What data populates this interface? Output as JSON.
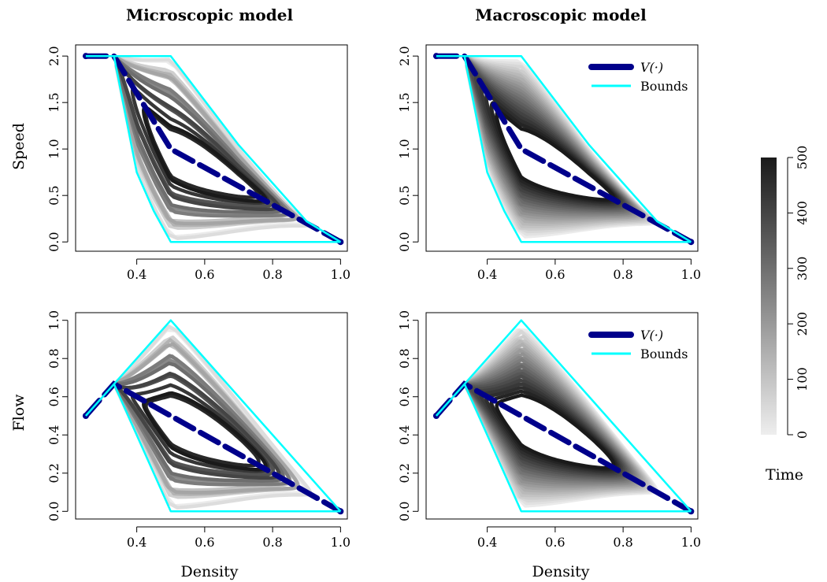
{
  "columns": [
    "Microscopic model",
    "Macroscopic model"
  ],
  "row_labels": [
    "Speed",
    "Flow"
  ],
  "xlabel": "Density",
  "legend": {
    "vfun": "V(·)",
    "bounds": "Bounds"
  },
  "colorbar": {
    "label": "Time",
    "ticks": [
      "0",
      "100",
      "200",
      "300",
      "400",
      "500"
    ],
    "range": [
      0,
      500
    ]
  },
  "colors": {
    "vfun": "#00008b",
    "bounds": "#00ffff",
    "time_low": "#eeeeee",
    "time_high": "#1a1a1a"
  },
  "chart_data": [
    {
      "type": "line",
      "title": "Microscopic model",
      "xlabel": "",
      "ylabel": "Speed",
      "xlim": [
        0.22,
        1.02
      ],
      "ylim": [
        -0.1,
        2.12
      ],
      "xticks": [
        "0.4",
        "0.6",
        "0.8",
        "1.0"
      ],
      "yticks": [
        "0.0",
        "0.5",
        "1.0",
        "1.5",
        "2.0"
      ],
      "series": [
        {
          "x": [
            0.25,
            0.333,
            0.5,
            1.0
          ],
          "y": [
            2.0,
            2.0,
            1.0,
            0.0
          ]
        },
        {
          "x": [
            0.25,
            0.5,
            0.7,
            0.9,
            1.0
          ],
          "y": [
            2.0,
            2.0,
            1.043,
            0.222,
            0.0
          ]
        },
        {
          "x": [
            0.333,
            0.4,
            0.45,
            0.5,
            1.0
          ],
          "y": [
            2.0,
            0.75,
            0.333,
            0.0,
            0.0
          ]
        }
      ]
    },
    {
      "type": "line",
      "title": "Macroscopic model",
      "xlabel": "",
      "ylabel": "",
      "xlim": [
        0.22,
        1.02
      ],
      "ylim": [
        -0.1,
        2.12
      ],
      "xticks": [
        "0.4",
        "0.6",
        "0.8",
        "1.0"
      ],
      "yticks": [
        "0.0",
        "0.5",
        "1.0",
        "1.5",
        "2.0"
      ],
      "series": [
        {
          "x": [
            0.25,
            0.333,
            0.5,
            1.0
          ],
          "y": [
            2.0,
            2.0,
            1.0,
            0.0
          ]
        },
        {
          "x": [
            0.25,
            0.5,
            0.7,
            0.9,
            1.0
          ],
          "y": [
            2.0,
            2.0,
            1.043,
            0.222,
            0.0
          ]
        },
        {
          "x": [
            0.333,
            0.4,
            0.45,
            0.5,
            1.0
          ],
          "y": [
            2.0,
            0.75,
            0.333,
            0.0,
            0.0
          ]
        }
      ]
    },
    {
      "type": "line",
      "title": "",
      "xlabel": "Density",
      "ylabel": "Flow",
      "xlim": [
        0.22,
        1.02
      ],
      "ylim": [
        -0.04,
        1.04
      ],
      "xticks": [
        "0.4",
        "0.6",
        "0.8",
        "1.0"
      ],
      "yticks": [
        "0.0",
        "0.2",
        "0.4",
        "0.6",
        "0.8",
        "1.0"
      ],
      "series": [
        {
          "x": [
            0.25,
            0.333,
            0.5,
            1.0
          ],
          "y": [
            0.5,
            0.667,
            0.5,
            0.0
          ]
        },
        {
          "x": [
            0.25,
            0.5,
            1.0
          ],
          "y": [
            0.5,
            1.0,
            0.0
          ]
        },
        {
          "x": [
            0.333,
            0.5,
            1.0
          ],
          "y": [
            0.667,
            0.0,
            0.0
          ]
        }
      ]
    },
    {
      "type": "line",
      "title": "",
      "xlabel": "Density",
      "ylabel": "",
      "xlim": [
        0.22,
        1.02
      ],
      "ylim": [
        -0.04,
        1.04
      ],
      "xticks": [
        "0.4",
        "0.6",
        "0.8",
        "1.0"
      ],
      "yticks": [
        "0.0",
        "0.2",
        "0.4",
        "0.6",
        "0.8",
        "1.0"
      ],
      "series": [
        {
          "x": [
            0.25,
            0.333,
            0.5,
            1.0
          ],
          "y": [
            0.5,
            0.667,
            0.5,
            0.0
          ]
        },
        {
          "x": [
            0.25,
            0.5,
            1.0
          ],
          "y": [
            0.5,
            1.0,
            0.0
          ]
        },
        {
          "x": [
            0.333,
            0.5,
            1.0
          ],
          "y": [
            0.667,
            0.0,
            0.0
          ]
        }
      ]
    }
  ]
}
